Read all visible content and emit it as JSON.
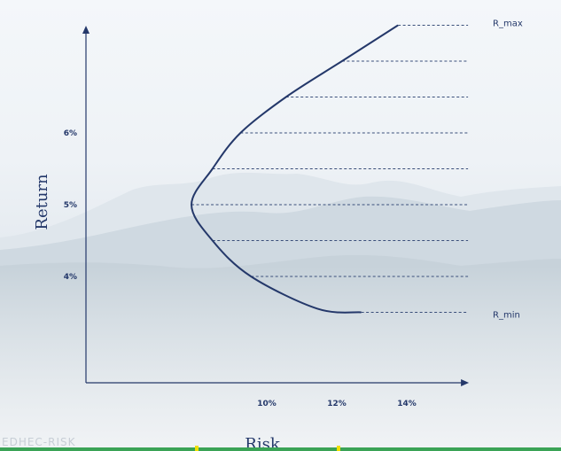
{
  "chart_data": {
    "type": "line",
    "xlabel": "Risk",
    "ylabel": "Return",
    "x_ticks": [
      "10%",
      "12%",
      "14%"
    ],
    "y_ticks": [
      "4%",
      "5%",
      "6%"
    ],
    "annotations": {
      "top": "R_max",
      "bottom": "R_min"
    },
    "frontier": {
      "min_risk": 7.9,
      "min_return": 5.0,
      "points": [
        {
          "x": 12.75,
          "y": 3.5
        },
        {
          "x": 11.5,
          "y": 3.55
        },
        {
          "x": 9.6,
          "y": 4.0
        },
        {
          "x": 8.5,
          "y": 4.5
        },
        {
          "x": 7.9,
          "y": 5.0
        },
        {
          "x": 8.5,
          "y": 5.5
        },
        {
          "x": 9.3,
          "y": 6.0
        },
        {
          "x": 10.6,
          "y": 6.5
        },
        {
          "x": 12.2,
          "y": 7.0
        },
        {
          "x": 13.8,
          "y": 7.5
        }
      ]
    },
    "levels": [
      {
        "y": 7.5,
        "x_start": 13.8
      },
      {
        "y": 7.0,
        "x_start": 12.2
      },
      {
        "y": 6.5,
        "x_start": 10.6
      },
      {
        "y": 6.0,
        "x_start": 9.3
      },
      {
        "y": 5.5,
        "x_start": 8.5
      },
      {
        "y": 5.0,
        "x_start": 7.9
      },
      {
        "y": 4.5,
        "x_start": 8.5
      },
      {
        "y": 4.0,
        "x_start": 9.6
      },
      {
        "y": 3.5,
        "x_start": 12.75
      }
    ],
    "dashed_line_end_x": 15.8,
    "x_axis_end": 15.8,
    "grid": false,
    "colors": {
      "curve": "#24386a",
      "axis": "#24386a",
      "dashed": "#3a4f7a"
    }
  },
  "watermark": "EDHEC-RISK"
}
